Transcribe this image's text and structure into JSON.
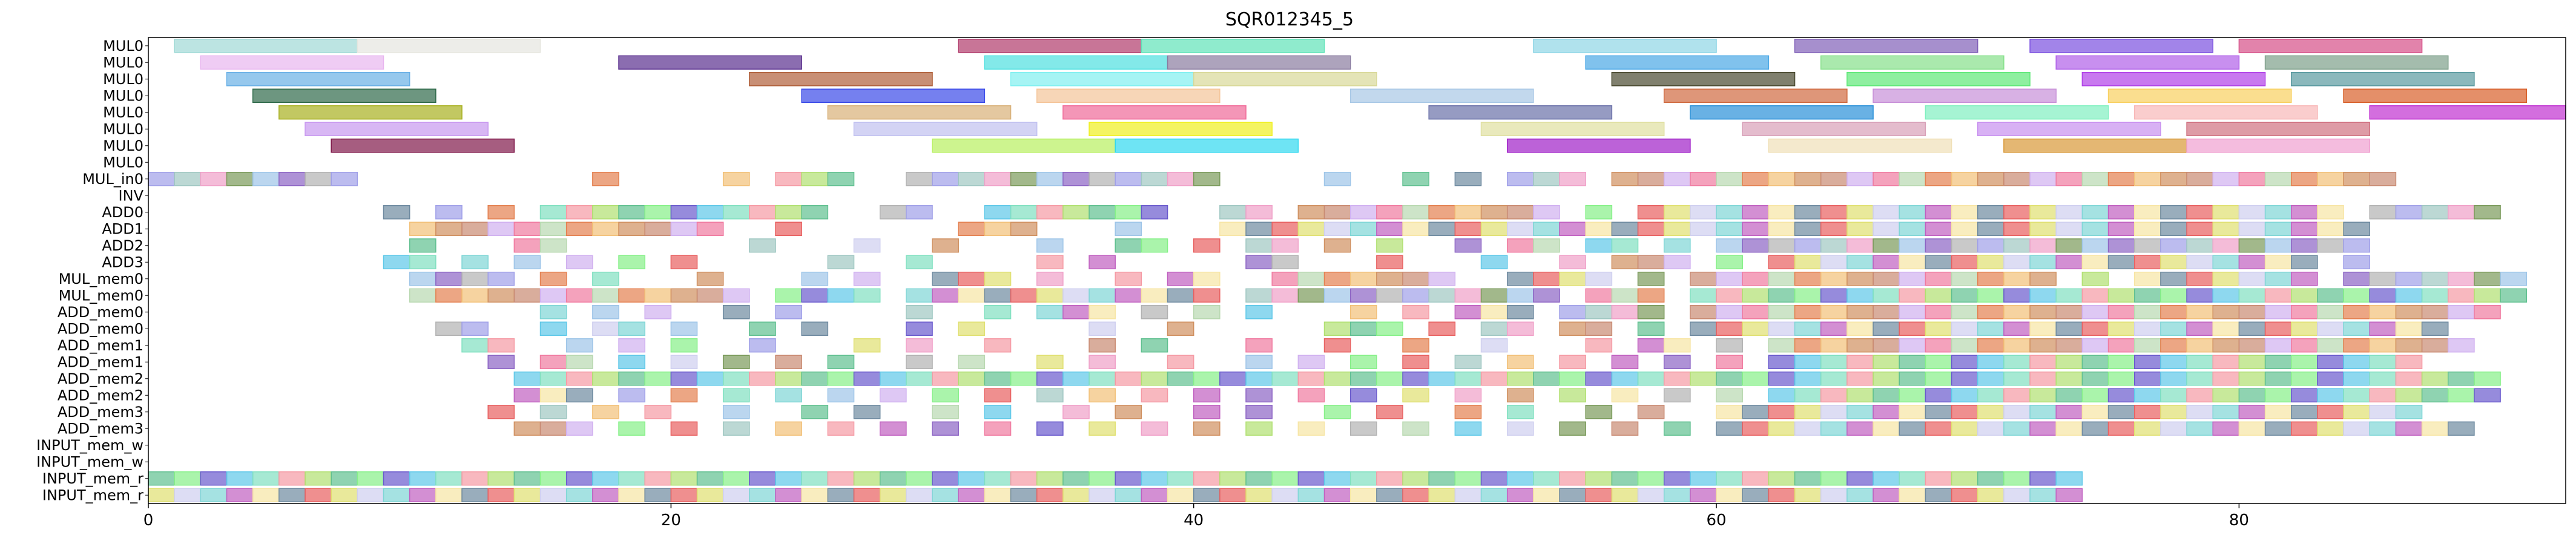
{
  "chart_data": {
    "type": "gantt",
    "title": "SQR012345_5",
    "xlabel": "",
    "ylabel": "",
    "xlim": [
      0,
      92.5
    ],
    "x_ticks": [
      0,
      20,
      40,
      60,
      80
    ],
    "grid": false,
    "rows": [
      "MUL0",
      "MUL0",
      "MUL0",
      "MUL0",
      "MUL0",
      "MUL0",
      "MUL0",
      "MUL0",
      "MUL_in0",
      "INV",
      "ADD0",
      "ADD1",
      "ADD2",
      "ADD3",
      "MUL_mem0",
      "MUL_mem0",
      "ADD_mem0",
      "ADD_mem0",
      "ADD_mem1",
      "ADD_mem1",
      "ADD_mem2",
      "ADD_mem2",
      "ADD_mem3",
      "ADD_mem3",
      "INPUT_mem_w",
      "INPUT_mem_w",
      "INPUT_mem_r",
      "INPUT_mem_r"
    ],
    "long_bars": [
      {
        "row": 0,
        "start": 1,
        "end": 8,
        "color": "#9fd9d6"
      },
      {
        "row": 0,
        "start": 8,
        "end": 15,
        "color": "#e6e6df"
      },
      {
        "row": 0,
        "start": 31,
        "end": 38,
        "color": "#b03b6b"
      },
      {
        "row": 0,
        "start": 38,
        "end": 45,
        "color": "#5fe3b8"
      },
      {
        "row": 0,
        "start": 53,
        "end": 60,
        "color": "#8fd6e6"
      },
      {
        "row": 0,
        "start": 63,
        "end": 70,
        "color": "#8060b8"
      },
      {
        "row": 0,
        "start": 72,
        "end": 79,
        "color": "#7a50e0"
      },
      {
        "row": 0,
        "start": 80,
        "end": 87,
        "color": "#d64f88"
      },
      {
        "row": 1,
        "start": 2,
        "end": 9,
        "color": "#e8b6ef"
      },
      {
        "row": 1,
        "start": 18,
        "end": 25,
        "color": "#5a2f8e"
      },
      {
        "row": 1,
        "start": 32,
        "end": 39,
        "color": "#4fe0e0"
      },
      {
        "row": 1,
        "start": 39,
        "end": 46,
        "color": "#8a7ca0"
      },
      {
        "row": 1,
        "start": 55,
        "end": 62,
        "color": "#4aa8e6"
      },
      {
        "row": 1,
        "start": 64,
        "end": 71,
        "color": "#86e08a"
      },
      {
        "row": 1,
        "start": 73,
        "end": 80,
        "color": "#b060e8"
      },
      {
        "row": 1,
        "start": 81,
        "end": 88,
        "color": "#7ea08a"
      },
      {
        "row": 2,
        "start": 3,
        "end": 10,
        "color": "#6ab0e6"
      },
      {
        "row": 2,
        "start": 23,
        "end": 30,
        "color": "#b0603a"
      },
      {
        "row": 2,
        "start": 33,
        "end": 40,
        "color": "#80f0f0"
      },
      {
        "row": 2,
        "start": 40,
        "end": 47,
        "color": "#d8d898"
      },
      {
        "row": 2,
        "start": 56,
        "end": 63,
        "color": "#4a4a30"
      },
      {
        "row": 2,
        "start": 65,
        "end": 72,
        "color": "#5ee878"
      },
      {
        "row": 2,
        "start": 74,
        "end": 81,
        "color": "#b040e8"
      },
      {
        "row": 2,
        "start": 82,
        "end": 89,
        "color": "#5a9aa0"
      },
      {
        "row": 3,
        "start": 4,
        "end": 11,
        "color": "#2f6a4a"
      },
      {
        "row": 3,
        "start": 25,
        "end": 32,
        "color": "#3a4ae8"
      },
      {
        "row": 3,
        "start": 34,
        "end": 41,
        "color": "#f4c498"
      },
      {
        "row": 3,
        "start": 46,
        "end": 53,
        "color": "#a8c8e6"
      },
      {
        "row": 3,
        "start": 58,
        "end": 65,
        "color": "#d06a40"
      },
      {
        "row": 3,
        "start": 66,
        "end": 73,
        "color": "#c890d8"
      },
      {
        "row": 3,
        "start": 75,
        "end": 82,
        "color": "#f8d060"
      },
      {
        "row": 3,
        "start": 84,
        "end": 91,
        "color": "#d8602a"
      },
      {
        "row": 4,
        "start": 5,
        "end": 12,
        "color": "#a8b020"
      },
      {
        "row": 4,
        "start": 26,
        "end": 33,
        "color": "#d8b078"
      },
      {
        "row": 4,
        "start": 35,
        "end": 42,
        "color": "#f06a98"
      },
      {
        "row": 4,
        "start": 49,
        "end": 56,
        "color": "#6a70a8"
      },
      {
        "row": 4,
        "start": 59,
        "end": 66,
        "color": "#2a90d8"
      },
      {
        "row": 4,
        "start": 68,
        "end": 75,
        "color": "#80f0c0"
      },
      {
        "row": 4,
        "start": 76,
        "end": 83,
        "color": "#f8b8b8"
      },
      {
        "row": 4,
        "start": 85,
        "end": 92.5,
        "color": "#c030d0"
      },
      {
        "row": 5,
        "start": 6,
        "end": 13,
        "color": "#c898f0"
      },
      {
        "row": 5,
        "start": 27,
        "end": 34,
        "color": "#c0c0f0"
      },
      {
        "row": 5,
        "start": 36,
        "end": 43,
        "color": "#f0f020"
      },
      {
        "row": 5,
        "start": 51,
        "end": 58,
        "color": "#e0e0a0"
      },
      {
        "row": 5,
        "start": 61,
        "end": 68,
        "color": "#d8a0b8"
      },
      {
        "row": 5,
        "start": 70,
        "end": 77,
        "color": "#c890f0"
      },
      {
        "row": 5,
        "start": 78,
        "end": 85,
        "color": "#d07080"
      },
      {
        "row": 6,
        "start": 7,
        "end": 14,
        "color": "#80184a"
      },
      {
        "row": 6,
        "start": 30,
        "end": 37,
        "color": "#b8f060"
      },
      {
        "row": 6,
        "start": 37,
        "end": 44,
        "color": "#30d8f0"
      },
      {
        "row": 6,
        "start": 52,
        "end": 59,
        "color": "#a020c8"
      },
      {
        "row": 6,
        "start": 62,
        "end": 69,
        "color": "#f0e0b8"
      },
      {
        "row": 6,
        "start": 71,
        "end": 78,
        "color": "#d89838"
      },
      {
        "row": 6,
        "start": 78,
        "end": 85,
        "color": "#f0a0d0"
      }
    ],
    "short_bar_columns": [
      0,
      1,
      2,
      3,
      4,
      5,
      6,
      7,
      8,
      9,
      10,
      11,
      12,
      13,
      14,
      15,
      16,
      17,
      18,
      19,
      20,
      21,
      22,
      23,
      24,
      25,
      26,
      27,
      28,
      29,
      30,
      31,
      32,
      33,
      34,
      35,
      36,
      37,
      38,
      39,
      40,
      41,
      42,
      43,
      44,
      45,
      46,
      47,
      48,
      49,
      50,
      51,
      52,
      53,
      54,
      55,
      56,
      57,
      58,
      59,
      60,
      61,
      62,
      63,
      64,
      65,
      66,
      67,
      68,
      69,
      70,
      71,
      72,
      73,
      74,
      75,
      76,
      77,
      78,
      79,
      80,
      81,
      82,
      83,
      84,
      85,
      86,
      87,
      88,
      89,
      90,
      91
    ],
    "short_bar_rows": {
      "8": [
        0,
        1,
        2,
        3,
        4,
        5,
        6,
        7,
        17,
        22,
        24,
        25,
        26,
        29,
        30,
        31,
        32,
        33,
        34,
        35,
        36,
        37,
        38,
        39,
        40,
        45,
        48,
        50,
        52,
        53,
        54,
        56,
        57,
        58,
        59,
        60,
        61,
        62,
        63,
        64,
        65,
        66,
        67,
        68,
        69,
        70,
        71,
        72,
        73,
        74,
        75,
        76,
        77,
        78,
        79,
        80,
        81,
        82,
        83,
        84,
        85
      ],
      "10": [
        9,
        11,
        13,
        15,
        16,
        17,
        18,
        19,
        20,
        21,
        22,
        23,
        24,
        25,
        28,
        29,
        32,
        33,
        34,
        35,
        36,
        37,
        38,
        41,
        42,
        44,
        45,
        46,
        47,
        48,
        49,
        50,
        51,
        52,
        53,
        55,
        57,
        58,
        59,
        60,
        61,
        62,
        63,
        64,
        65,
        66,
        67,
        68,
        69,
        70,
        71,
        72,
        73,
        74,
        75,
        76,
        77,
        78,
        79,
        80,
        81,
        82,
        83,
        85,
        86,
        87,
        88,
        89
      ],
      "11": [
        10,
        11,
        12,
        13,
        14,
        15,
        16,
        17,
        18,
        19,
        20,
        21,
        24,
        31,
        32,
        33,
        37,
        41,
        42,
        43,
        44,
        45,
        46,
        47,
        48,
        49,
        50,
        51,
        52,
        53,
        54,
        55,
        56,
        57,
        58,
        59,
        60,
        61,
        62,
        63,
        64,
        65,
        66,
        67,
        68,
        69,
        70,
        71,
        72,
        73,
        74,
        75,
        76,
        77,
        78,
        79,
        80,
        81,
        82,
        83,
        84
      ],
      "12": [
        10,
        14,
        15,
        23,
        27,
        30,
        34,
        37,
        38,
        40,
        42,
        43,
        45,
        47,
        50,
        52,
        53,
        55,
        56,
        58,
        60,
        61,
        62,
        63,
        64,
        65,
        66,
        67,
        68,
        69,
        70,
        71,
        72,
        73,
        74,
        75,
        76,
        77,
        78,
        79,
        80,
        81,
        82,
        83,
        84
      ],
      "13": [
        9,
        10,
        12,
        14,
        16,
        18,
        20,
        26,
        29,
        34,
        36,
        42,
        43,
        47,
        51,
        54,
        56,
        57,
        58,
        60,
        62,
        63,
        64,
        65,
        66,
        67,
        68,
        69,
        70,
        71,
        72,
        73,
        74,
        75,
        76,
        77,
        78,
        79,
        80,
        81,
        82,
        84
      ],
      "14": [
        10,
        11,
        12,
        13,
        15,
        17,
        21,
        25,
        27,
        30,
        31,
        32,
        34,
        37,
        39,
        40,
        43,
        44,
        45,
        46,
        47,
        48,
        49,
        52,
        53,
        54,
        55,
        57,
        59,
        60,
        61,
        62,
        63,
        64,
        65,
        66,
        67,
        68,
        69,
        70,
        71,
        72,
        74,
        76,
        77,
        78,
        79,
        80,
        81,
        82,
        84,
        85,
        86,
        87,
        88,
        89,
        90
      ],
      "15": [
        10,
        11,
        12,
        13,
        14,
        15,
        16,
        17,
        18,
        19,
        20,
        21,
        22,
        24,
        25,
        26,
        27,
        29,
        30,
        31,
        32,
        33,
        34,
        35,
        36,
        37,
        38,
        39,
        40,
        42,
        43,
        44,
        45,
        46,
        47,
        48,
        49,
        50,
        51,
        52,
        53,
        55,
        56,
        57,
        59,
        60,
        61,
        62,
        63,
        64,
        65,
        66,
        67,
        68,
        69,
        70,
        71,
        72,
        73,
        74,
        75,
        76,
        77,
        78,
        79,
        80,
        81,
        82,
        83,
        84,
        85,
        86,
        87,
        88,
        89,
        90
      ],
      "16": [
        15,
        17,
        19,
        22,
        24,
        29,
        32,
        34,
        35,
        36,
        38,
        40,
        42,
        46,
        48,
        50,
        51,
        52,
        54,
        55,
        56,
        57,
        59,
        60,
        61,
        62,
        63,
        64,
        65,
        66,
        67,
        68,
        69,
        70,
        71,
        72,
        73,
        74,
        75,
        76,
        77,
        78,
        79,
        80,
        81,
        82,
        83,
        84,
        85,
        86,
        87,
        88,
        89
      ],
      "17": [
        11,
        12,
        15,
        17,
        18,
        20,
        23,
        25,
        29,
        31,
        36,
        39,
        45,
        46,
        47,
        49,
        51,
        52,
        54,
        55,
        57,
        59,
        60,
        61,
        62,
        63,
        64,
        65,
        66,
        67,
        68,
        69,
        70,
        71,
        72,
        73,
        74,
        75,
        76,
        77,
        78,
        79,
        80,
        81,
        82,
        83,
        84,
        85,
        86,
        87
      ],
      "18": [
        12,
        13,
        16,
        18,
        20,
        23,
        27,
        29,
        32,
        36,
        38,
        42,
        45,
        48,
        51,
        55,
        57,
        58,
        60,
        62,
        63,
        64,
        65,
        66,
        67,
        68,
        69,
        70,
        71,
        72,
        73,
        74,
        75,
        76,
        77,
        78,
        79,
        80,
        81,
        82,
        83,
        84,
        85,
        86,
        87,
        88
      ],
      "19": [
        13,
        15,
        16,
        18,
        20,
        22,
        24,
        26,
        29,
        31,
        34,
        36,
        39,
        42,
        44,
        46,
        48,
        50,
        52,
        54,
        56,
        58,
        60,
        62,
        63,
        64,
        65,
        66,
        67,
        68,
        69,
        70,
        71,
        72,
        73,
        74,
        75,
        76,
        77,
        78,
        79,
        80,
        81,
        82,
        83,
        84,
        85,
        86
      ],
      "20": [
        14,
        15,
        16,
        17,
        18,
        19,
        20,
        21,
        22,
        23,
        24,
        25,
        26,
        27,
        28,
        29,
        30,
        31,
        32,
        33,
        34,
        35,
        36,
        37,
        38,
        39,
        40,
        41,
        42,
        43,
        44,
        45,
        46,
        47,
        48,
        49,
        50,
        51,
        52,
        53,
        54,
        55,
        56,
        57,
        58,
        59,
        60,
        61,
        62,
        63,
        64,
        65,
        66,
        67,
        68,
        69,
        70,
        71,
        72,
        73,
        74,
        75,
        76,
        77,
        78,
        79,
        80,
        81,
        82,
        83,
        84,
        85,
        86,
        87,
        88,
        89
      ],
      "21": [
        14,
        15,
        16,
        18,
        20,
        22,
        24,
        26,
        28,
        30,
        32,
        34,
        36,
        38,
        40,
        42,
        44,
        46,
        48,
        50,
        52,
        54,
        56,
        58,
        60,
        62,
        63,
        64,
        65,
        66,
        67,
        68,
        69,
        70,
        71,
        72,
        73,
        74,
        75,
        76,
        77,
        78,
        79,
        80,
        81,
        82,
        83,
        84,
        85,
        86,
        87,
        88,
        89
      ],
      "22": [
        13,
        15,
        17,
        19,
        22,
        25,
        27,
        30,
        32,
        35,
        37,
        40,
        42,
        45,
        47,
        50,
        52,
        55,
        57,
        60,
        61,
        62,
        63,
        64,
        65,
        66,
        67,
        68,
        69,
        70,
        71,
        72,
        73,
        74,
        75,
        76,
        77,
        78,
        79,
        80,
        81,
        82,
        83,
        84,
        85,
        86
      ],
      "23": [
        14,
        15,
        16,
        18,
        20,
        22,
        24,
        26,
        28,
        30,
        32,
        34,
        36,
        38,
        40,
        42,
        44,
        46,
        48,
        50,
        52,
        54,
        56,
        58,
        60,
        61,
        62,
        63,
        64,
        65,
        66,
        67,
        68,
        69,
        70,
        71,
        72,
        73,
        74,
        75,
        76,
        77,
        78,
        79,
        80,
        81,
        82,
        83,
        84,
        85,
        86,
        87,
        88
      ],
      "26": [
        0,
        1,
        2,
        3,
        4,
        5,
        6,
        7,
        8,
        9,
        10,
        11,
        12,
        13,
        14,
        15,
        16,
        17,
        18,
        19,
        20,
        21,
        22,
        23,
        24,
        25,
        26,
        27,
        28,
        29,
        30,
        31,
        32,
        33,
        34,
        35,
        36,
        37,
        38,
        39,
        40,
        41,
        42,
        43,
        44,
        45,
        46,
        47,
        48,
        49,
        50,
        51,
        52,
        53,
        54,
        55,
        56,
        57,
        58,
        59,
        60,
        61,
        62,
        63,
        64,
        65,
        66,
        67,
        68,
        69,
        70,
        71,
        72,
        73
      ],
      "27": [
        0,
        1,
        2,
        3,
        4,
        5,
        6,
        7,
        8,
        9,
        10,
        11,
        12,
        13,
        14,
        15,
        16,
        17,
        18,
        19,
        20,
        21,
        22,
        23,
        24,
        25,
        26,
        27,
        28,
        29,
        30,
        31,
        32,
        33,
        34,
        35,
        36,
        37,
        38,
        39,
        40,
        41,
        42,
        43,
        44,
        45,
        46,
        47,
        48,
        49,
        50,
        51,
        52,
        53,
        54,
        55,
        56,
        57,
        58,
        59,
        60,
        61,
        62,
        63,
        64,
        65,
        66,
        67,
        68,
        69,
        70,
        71,
        72,
        73
      ]
    },
    "palette": [
      "#9ec5e8",
      "#f7e5a4",
      "#86f088",
      "#b8d8b0",
      "#9fc7c2",
      "#cfcfef",
      "#f59aa4",
      "#c98a72",
      "#8c64c4",
      "#6e8aa0",
      "#6a5acd",
      "#e48050",
      "#f0a0c8",
      "#7fd6d6",
      "#b0e070",
      "#d0b0f0",
      "#b2b2b2",
      "#e86060",
      "#5ec8e8",
      "#f2c078",
      "#7a9a5a",
      "#c060c0",
      "#60c090",
      "#f07aa0",
      "#a0a0e8",
      "#e0e070",
      "#80e0c0",
      "#d09060"
    ],
    "subset_fraction": 0.6
  }
}
